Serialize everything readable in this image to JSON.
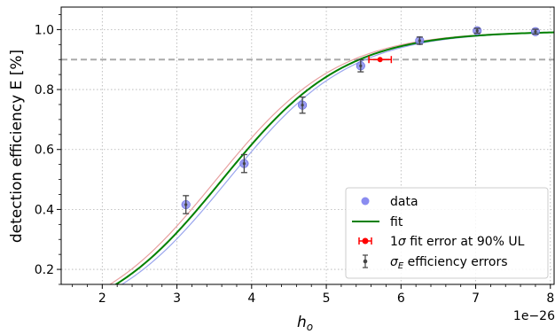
{
  "chart_data": {
    "type": "scatter",
    "xlabel_main": "h",
    "xlabel_sub": "o",
    "ylabel": "detection efficiency E [%]",
    "offset_text": "1e−26",
    "xlim": [
      1.45,
      8.05
    ],
    "ylim": [
      0.15,
      1.075
    ],
    "xticks": [
      2,
      3,
      4,
      5,
      6,
      7,
      8
    ],
    "yticks": [
      0.2,
      0.4,
      0.6,
      0.8,
      1.0
    ],
    "ytick_labels": [
      "0.2",
      "0.4",
      "0.6",
      "0.8",
      "1.0"
    ],
    "grid": true,
    "threshold": 0.9,
    "colors": {
      "data": "#8a8cf0",
      "data_edge": "#4b4fd6",
      "fit": "#008000",
      "band_upper": "#e8a0a0",
      "band_lower": "#9aa6ee",
      "ul_marker": "#ff0000",
      "errorbar": "#444444",
      "threshold": "#aaaaaa"
    },
    "data_points": [
      {
        "x": 3.12,
        "y": 0.416,
        "err": 0.03
      },
      {
        "x": 3.9,
        "y": 0.553,
        "err": 0.03
      },
      {
        "x": 4.68,
        "y": 0.748,
        "err": 0.027
      },
      {
        "x": 5.46,
        "y": 0.879,
        "err": 0.02
      },
      {
        "x": 6.25,
        "y": 0.963,
        "err": 0.012
      },
      {
        "x": 7.02,
        "y": 0.996,
        "err": 0.008
      },
      {
        "x": 7.8,
        "y": 0.993,
        "err": 0.008
      }
    ],
    "fit": {
      "x0": 3.6,
      "k": 1.22,
      "top": 0.995
    },
    "band": {
      "upper_shift": -0.08,
      "lower_shift": 0.08
    },
    "ul_point": {
      "x": 5.72,
      "y": 0.9,
      "xerr_low": 0.15,
      "xerr_high": 0.15
    },
    "legend": {
      "position": "lower right",
      "items": [
        {
          "key": "data",
          "label": "data"
        },
        {
          "key": "fit",
          "label": "fit"
        },
        {
          "key": "ul",
          "label_prefix": "1",
          "label_sigma": "σ",
          "label_rest": " fit error at 90% UL"
        },
        {
          "key": "eff",
          "label_sigma": "σ",
          "label_sub": "E",
          "label_rest": " efficiency errors"
        }
      ]
    }
  }
}
